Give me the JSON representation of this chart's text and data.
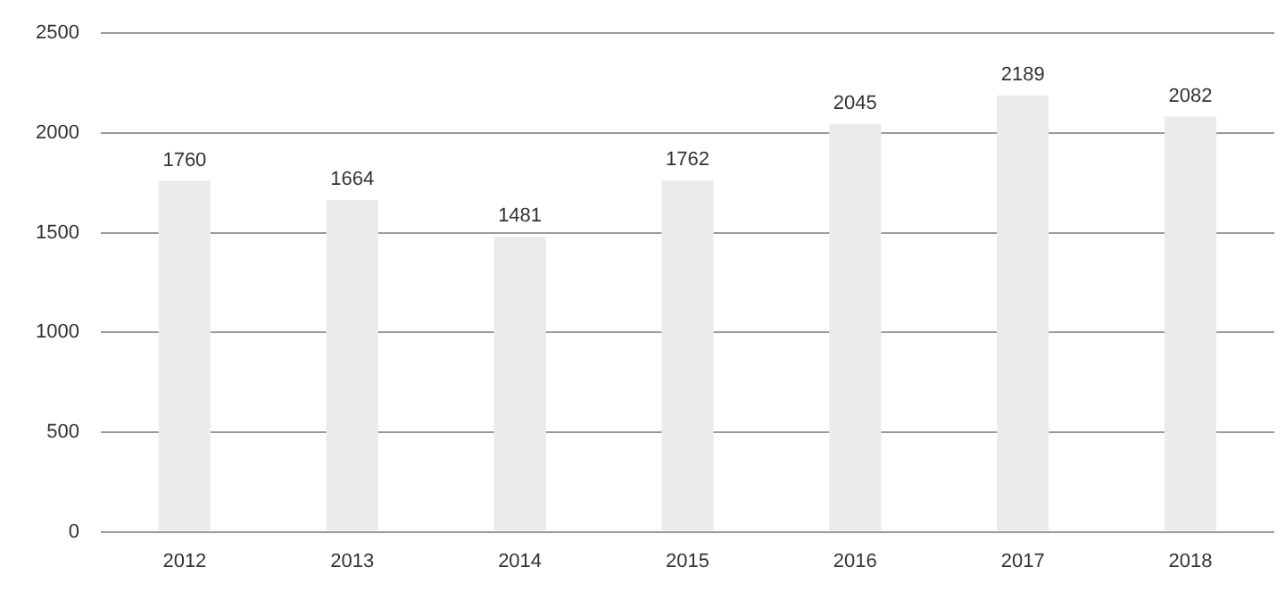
{
  "chart_data": {
    "type": "bar",
    "categories": [
      "2012",
      "2013",
      "2014",
      "2015",
      "2016",
      "2017",
      "2018"
    ],
    "values": [
      1760,
      1664,
      1481,
      1762,
      2045,
      2189,
      2082
    ],
    "color": "#ebebeb",
    "ylim": [
      0,
      2500
    ],
    "yticks": [
      0,
      500,
      1000,
      1500,
      2000,
      2500
    ],
    "grid": "y",
    "data_labels": true,
    "legend": false
  }
}
